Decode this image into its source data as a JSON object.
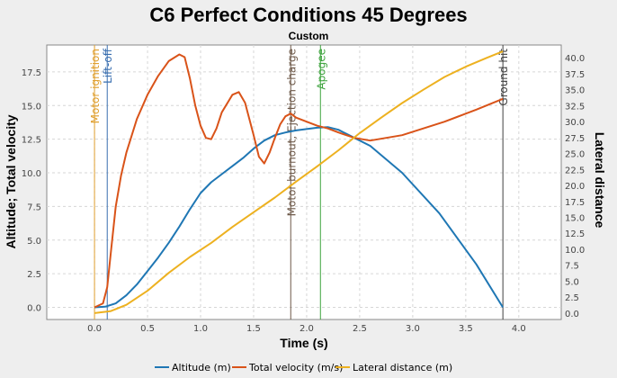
{
  "chart_data": {
    "type": "line",
    "title": "C6 Perfect Conditions 45 Degrees",
    "subtitle": "Custom",
    "xlabel": "Time (s)",
    "ylabel_left": "Altitude; Total velocity",
    "ylabel_right": "Lateral distance",
    "xlim": [
      -0.45,
      4.4
    ],
    "ylim_left": [
      -0.9,
      19.5
    ],
    "ylim_right": [
      -1.0,
      42.0
    ],
    "x_ticks": [
      "0.0",
      "0.5",
      "1.0",
      "1.5",
      "2.0",
      "2.5",
      "3.0",
      "3.5",
      "4.0"
    ],
    "y_left_ticks": [
      "0.0",
      "2.5",
      "5.0",
      "7.5",
      "10.0",
      "12.5",
      "15.0",
      "17.5"
    ],
    "y_right_ticks": [
      "0.0",
      "2.5",
      "5.0",
      "7.5",
      "10.0",
      "12.5",
      "15.0",
      "17.5",
      "20.0",
      "22.5",
      "25.0",
      "27.5",
      "30.0",
      "32.5",
      "35.0",
      "37.5",
      "40.0"
    ],
    "grid": true,
    "legend_position": "bottom",
    "series": [
      {
        "name": "Altitude (m)",
        "color": "#1f77b4",
        "axis": "left",
        "x": [
          0,
          0.1,
          0.2,
          0.3,
          0.4,
          0.5,
          0.6,
          0.7,
          0.8,
          0.9,
          1.0,
          1.1,
          1.2,
          1.3,
          1.4,
          1.5,
          1.6,
          1.7,
          1.8,
          1.9,
          2.0,
          2.1,
          2.2,
          2.3,
          2.4,
          2.6,
          2.9,
          3.25,
          3.6,
          3.85
        ],
        "values": [
          0,
          0.05,
          0.3,
          0.9,
          1.7,
          2.7,
          3.7,
          4.8,
          6.0,
          7.3,
          8.5,
          9.3,
          9.9,
          10.5,
          11.1,
          11.8,
          12.4,
          12.8,
          13.0,
          13.15,
          13.25,
          13.35,
          13.4,
          13.2,
          12.8,
          12.0,
          10.0,
          7.0,
          3.2,
          0.0
        ]
      },
      {
        "name": "Total velocity (m/s)",
        "color": "#d95319",
        "axis": "left",
        "x": [
          0,
          0.08,
          0.12,
          0.16,
          0.2,
          0.25,
          0.3,
          0.4,
          0.5,
          0.6,
          0.7,
          0.8,
          0.85,
          0.9,
          0.95,
          1.0,
          1.05,
          1.1,
          1.15,
          1.2,
          1.3,
          1.36,
          1.42,
          1.5,
          1.55,
          1.6,
          1.65,
          1.7,
          1.75,
          1.8,
          1.85,
          1.9,
          2.0,
          2.1,
          2.2,
          2.3,
          2.45,
          2.6,
          2.9,
          3.3,
          3.6,
          3.85
        ],
        "values": [
          0,
          0.3,
          1.5,
          4.5,
          7.5,
          9.8,
          11.5,
          14.0,
          15.8,
          17.2,
          18.3,
          18.8,
          18.6,
          17.0,
          15.0,
          13.5,
          12.6,
          12.5,
          13.3,
          14.5,
          15.8,
          16.0,
          15.2,
          12.8,
          11.2,
          10.7,
          11.5,
          12.6,
          13.6,
          14.2,
          14.4,
          14.1,
          13.8,
          13.5,
          13.3,
          13.0,
          12.6,
          12.4,
          12.8,
          13.8,
          14.7,
          15.5
        ]
      },
      {
        "name": "Lateral distance (m)",
        "color": "#edb120",
        "axis": "right",
        "x": [
          0,
          0.15,
          0.3,
          0.5,
          0.7,
          0.9,
          1.1,
          1.3,
          1.5,
          1.7,
          1.9,
          2.1,
          2.3,
          2.5,
          2.7,
          2.9,
          3.1,
          3.3,
          3.5,
          3.7,
          3.85
        ],
        "values": [
          0,
          0.3,
          1.3,
          3.5,
          6.3,
          8.8,
          11.0,
          13.5,
          15.8,
          18.1,
          20.6,
          23.0,
          25.5,
          28.2,
          30.6,
          32.9,
          35.0,
          37.0,
          38.6,
          40.0,
          41.0
        ]
      }
    ],
    "events": [
      {
        "label": "Motor ignition",
        "x": 0.0,
        "color": "#e0a030"
      },
      {
        "label": "Lift-off",
        "x": 0.12,
        "color": "#3a6fb0"
      },
      {
        "label": "Motor burnout, Ejection charge",
        "x": 1.85,
        "color": "#6e5a4a"
      },
      {
        "label": "Apogee",
        "x": 2.13,
        "color": "#3da33d"
      },
      {
        "label": "Ground hit",
        "x": 3.85,
        "color": "#404040"
      }
    ]
  }
}
